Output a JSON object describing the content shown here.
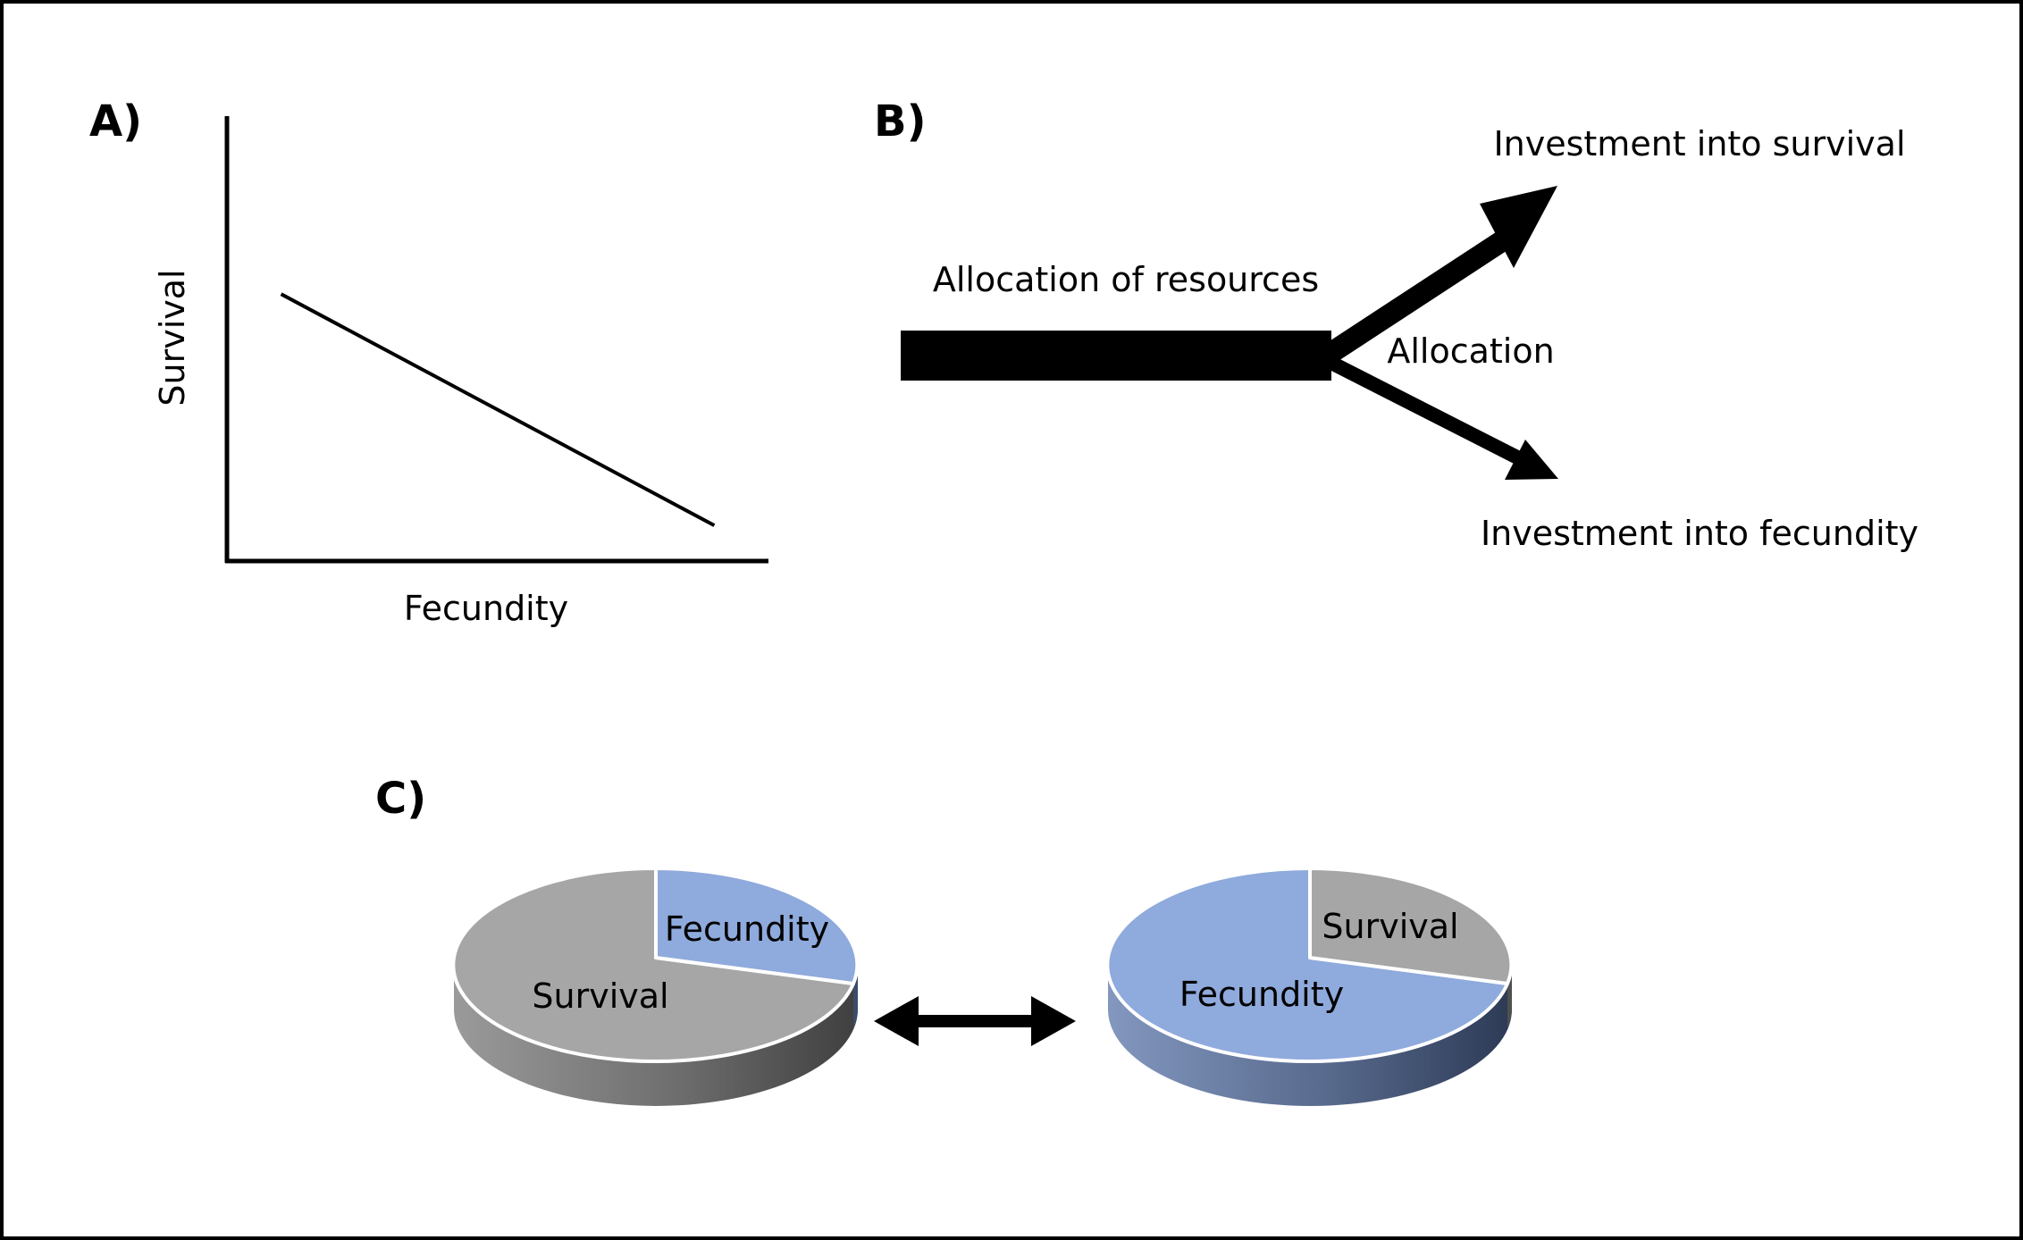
{
  "panels": {
    "a": {
      "letter": "A)",
      "x_axis_label": "Fecundity",
      "y_axis_label": "Survival"
    },
    "b": {
      "letter": "B)",
      "source_label": "Allocation of resources",
      "branch_label": "Allocation",
      "upper_target_label": "Investment into survival",
      "lower_target_label": "Investment into fecundity"
    },
    "c": {
      "letter": "C)",
      "left_pie": {
        "survival_label": "Survival",
        "fecundity_label": "Fecundity"
      },
      "right_pie": {
        "survival_label": "Survival",
        "fecundity_label": "Fecundity"
      }
    }
  },
  "chart_data": [
    {
      "type": "line",
      "series": [
        {
          "x": [
            0.1,
            0.9
          ],
          "y": [
            0.6,
            0.08
          ]
        }
      ],
      "xlabel": "Fecundity",
      "ylabel": "Survival",
      "xlim": [
        0,
        1
      ],
      "ylim": [
        0,
        1
      ],
      "grid": false
    },
    {
      "type": "pie",
      "labels": [
        "Fecundity",
        "Survival"
      ],
      "values": [
        28,
        72
      ]
    },
    {
      "type": "pie",
      "labels": [
        "Survival",
        "Fecundity"
      ],
      "values": [
        28,
        72
      ]
    }
  ],
  "colors": {
    "survival": "#a6a6a6",
    "fecundity": "#8faadc",
    "survival_side": "#595959",
    "fecundity_side": "#4a5f82",
    "ink": "#000000"
  }
}
